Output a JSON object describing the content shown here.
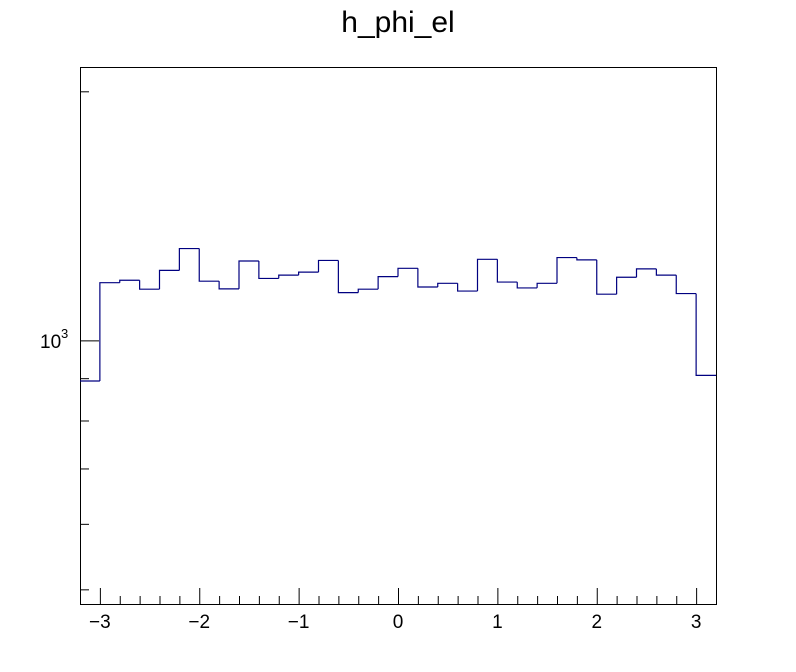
{
  "chart_data": {
    "type": "histogram",
    "title": "h_phi_el",
    "xlabel": "",
    "ylabel": "",
    "y_scale": "log",
    "xlim": [
      -3.2,
      3.2
    ],
    "ylim": [
      480,
      2140
    ],
    "x_ticks": [
      -3,
      -2,
      -1,
      0,
      1,
      2,
      3
    ],
    "x_tick_labels": [
      "−3",
      "−2",
      "−1",
      "0",
      "1",
      "2",
      "3"
    ],
    "y_ticks": [
      1000
    ],
    "y_tick_labels": [
      {
        "base": "10",
        "exp": "3"
      }
    ],
    "line_color": "#000080",
    "bins": {
      "edges_start": -3.2,
      "bin_width": 0.2,
      "counts": [
        893,
        1174,
        1182,
        1153,
        1215,
        1291,
        1179,
        1154,
        1247,
        1188,
        1199,
        1209,
        1249,
        1142,
        1153,
        1194,
        1222,
        1160,
        1172,
        1147,
        1253,
        1176,
        1157,
        1172,
        1259,
        1251,
        1137,
        1192,
        1220,
        1199,
        1139,
        907
      ]
    }
  }
}
